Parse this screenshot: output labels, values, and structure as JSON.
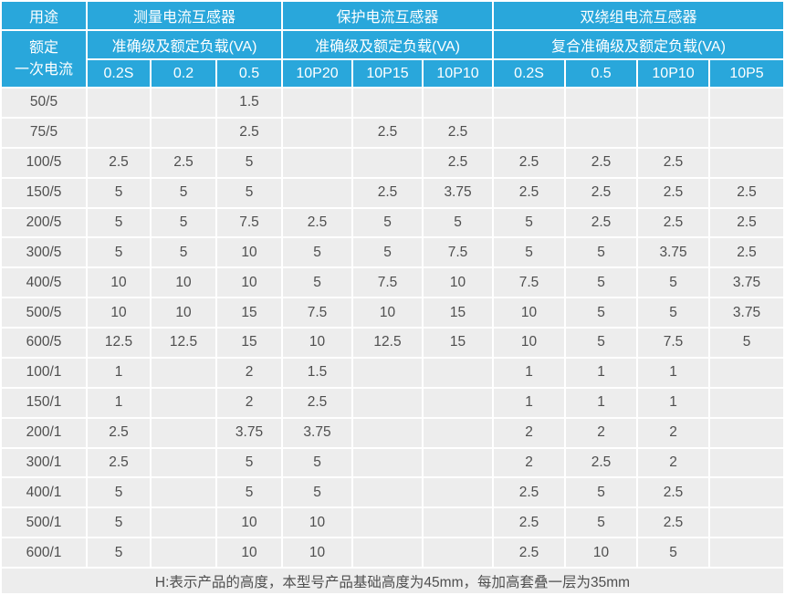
{
  "colors": {
    "header_bg": "#29a7db",
    "header_text": "#ffffff",
    "cell_bg": "#ededed",
    "grid": "#ffffff",
    "body_text": "#4f4f4f"
  },
  "table": {
    "usage_header": "用途",
    "rated_current_lines": [
      "额定",
      "一次电流"
    ],
    "groups": [
      {
        "label": "测量电流互感器",
        "subheader": "准确级及额定负载(VA)",
        "columns": [
          "0.2S",
          "0.2",
          "0.5"
        ]
      },
      {
        "label": "保护电流互感器",
        "subheader": "准确级及额定负载(VA)",
        "columns": [
          "10P20",
          "10P15",
          "10P10"
        ]
      },
      {
        "label": "双绕组电流互感器",
        "subheader": "复合准确级及额定负载(VA)",
        "columns": [
          "0.2S",
          "0.5",
          "10P10",
          "10P5"
        ]
      }
    ],
    "rows": [
      {
        "current": "50/5",
        "values": [
          "",
          "",
          "1.5",
          "",
          "",
          "",
          "",
          "",
          "",
          ""
        ]
      },
      {
        "current": "75/5",
        "values": [
          "",
          "",
          "2.5",
          "",
          "2.5",
          "2.5",
          "",
          "",
          "",
          ""
        ]
      },
      {
        "current": "100/5",
        "values": [
          "2.5",
          "2.5",
          "5",
          "",
          "",
          "2.5",
          "2.5",
          "2.5",
          "2.5",
          ""
        ]
      },
      {
        "current": "150/5",
        "values": [
          "5",
          "5",
          "5",
          "",
          "2.5",
          "3.75",
          "2.5",
          "2.5",
          "2.5",
          "2.5"
        ]
      },
      {
        "current": "200/5",
        "values": [
          "5",
          "5",
          "7.5",
          "2.5",
          "5",
          "5",
          "5",
          "2.5",
          "2.5",
          "2.5"
        ]
      },
      {
        "current": "300/5",
        "values": [
          "5",
          "5",
          "10",
          "5",
          "5",
          "7.5",
          "5",
          "5",
          "3.75",
          "2.5"
        ]
      },
      {
        "current": "400/5",
        "values": [
          "10",
          "10",
          "10",
          "5",
          "7.5",
          "10",
          "7.5",
          "5",
          "5",
          "3.75"
        ]
      },
      {
        "current": "500/5",
        "values": [
          "10",
          "10",
          "15",
          "7.5",
          "10",
          "15",
          "10",
          "5",
          "5",
          "3.75"
        ]
      },
      {
        "current": "600/5",
        "values": [
          "12.5",
          "12.5",
          "15",
          "10",
          "12.5",
          "15",
          "10",
          "5",
          "7.5",
          "5"
        ]
      },
      {
        "current": "100/1",
        "values": [
          "1",
          "",
          "2",
          "1.5",
          "",
          "",
          "1",
          "1",
          "1",
          ""
        ]
      },
      {
        "current": "150/1",
        "values": [
          "1",
          "",
          "2",
          "2.5",
          "",
          "",
          "1",
          "1",
          "1",
          ""
        ]
      },
      {
        "current": "200/1",
        "values": [
          "2.5",
          "",
          "3.75",
          "3.75",
          "",
          "",
          "2",
          "2",
          "2",
          ""
        ]
      },
      {
        "current": "300/1",
        "values": [
          "2.5",
          "",
          "5",
          "5",
          "",
          "",
          "2",
          "2.5",
          "2",
          ""
        ]
      },
      {
        "current": "400/1",
        "values": [
          "5",
          "",
          "5",
          "5",
          "",
          "",
          "2.5",
          "5",
          "2.5",
          ""
        ]
      },
      {
        "current": "500/1",
        "values": [
          "5",
          "",
          "10",
          "10",
          "",
          "",
          "2.5",
          "5",
          "2.5",
          ""
        ]
      },
      {
        "current": "600/1",
        "values": [
          "5",
          "",
          "10",
          "10",
          "",
          "",
          "2.5",
          "10",
          "5",
          ""
        ]
      }
    ],
    "footnote": "H:表示产品的高度，本型号产品基础高度为45mm，每加高套叠一层为35mm"
  }
}
